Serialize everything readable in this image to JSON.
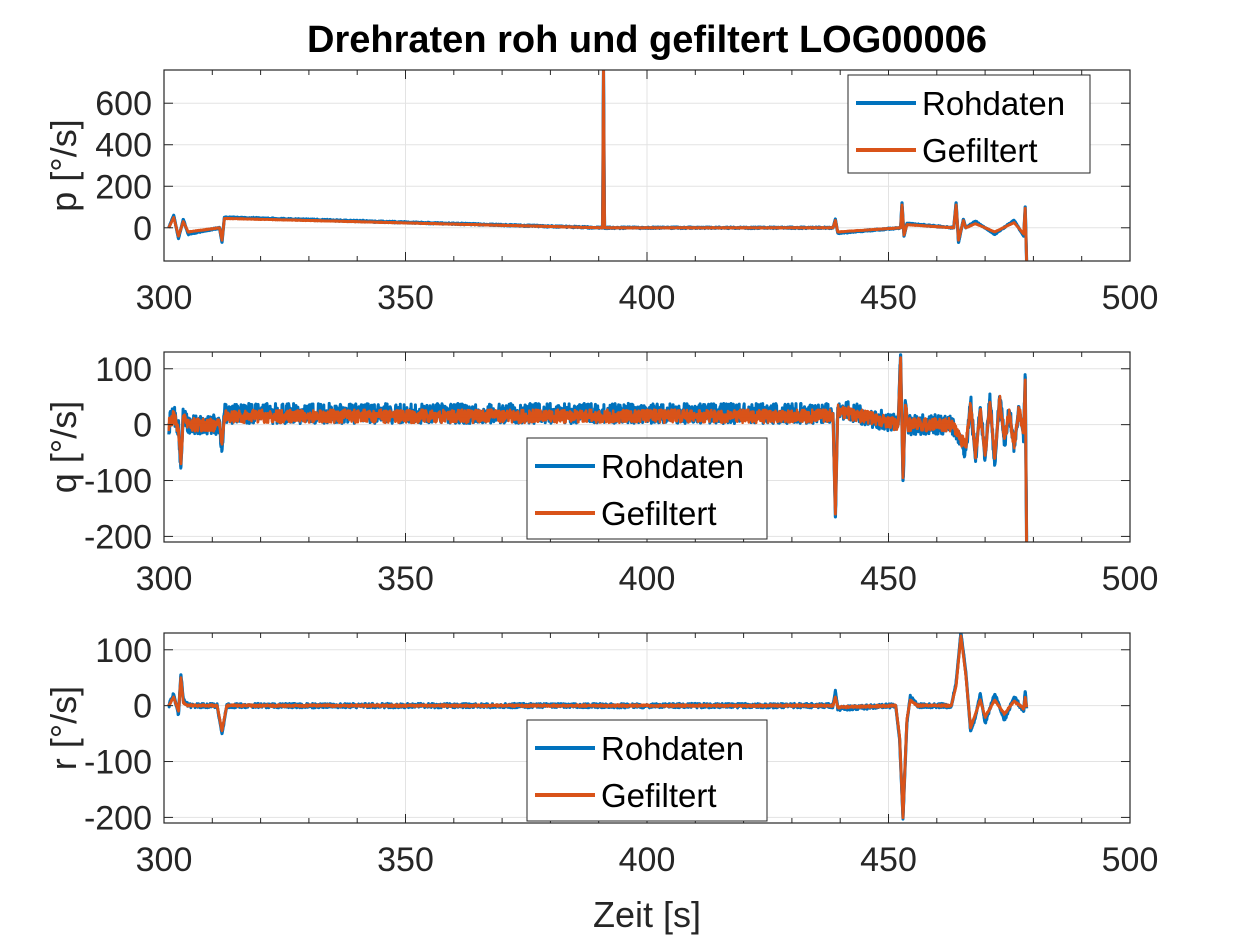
{
  "figure_title": "Drehraten roh und gefiltert LOG00006",
  "colors": {
    "raw": "#0072BD",
    "filtered": "#D95319",
    "grid": "#e3e3e3",
    "axis": "#262626"
  },
  "chart_data": [
    {
      "type": "line",
      "title": "Drehraten roh und gefiltert LOG00006",
      "xlabel": "",
      "ylabel": "p [°/s]",
      "xlim": [
        300,
        500
      ],
      "ylim": [
        -160,
        760
      ],
      "xticks": [
        300,
        350,
        400,
        450,
        500
      ],
      "yticks": [
        0,
        200,
        400,
        600
      ],
      "xtick_labels": [
        "300",
        "350",
        "400",
        "450",
        "500"
      ],
      "ytick_labels": [
        "0",
        "200",
        "400",
        "600"
      ],
      "grid": true,
      "legend": {
        "position": "top-right",
        "entries": [
          "Rohdaten",
          "Gefiltert"
        ]
      },
      "series": [
        {
          "name": "Rohdaten",
          "noise": 4,
          "x": [
            301,
            302,
            303,
            304,
            305,
            311.5,
            312,
            312.5,
            390.8,
            391,
            391.2,
            438.5,
            439,
            439.5,
            452.5,
            452.8,
            453.2,
            453.8,
            463.5,
            464,
            464.5,
            465.5,
            466,
            468,
            472,
            476,
            478,
            478.3,
            478.6
          ],
          "y": [
            0,
            60,
            -50,
            40,
            -30,
            0,
            -70,
            50,
            0,
            760,
            0,
            0,
            40,
            -25,
            0,
            120,
            -40,
            20,
            0,
            120,
            -70,
            40,
            0,
            30,
            -30,
            35,
            -40,
            100,
            -160
          ]
        },
        {
          "name": "Gefiltert",
          "noise": 2,
          "x": [
            301,
            302,
            303,
            304,
            305,
            311.5,
            312,
            312.5,
            390.8,
            391,
            391.2,
            438.5,
            439,
            439.5,
            452.5,
            452.8,
            453.2,
            453.8,
            463.5,
            464,
            464.5,
            465.5,
            466,
            468,
            472,
            476,
            478,
            478.3,
            478.6
          ],
          "y": [
            0,
            50,
            -40,
            30,
            -20,
            0,
            -60,
            45,
            0,
            760,
            0,
            0,
            35,
            -20,
            0,
            110,
            -35,
            15,
            0,
            110,
            -60,
            35,
            0,
            20,
            -20,
            25,
            -30,
            95,
            -160
          ]
        }
      ]
    },
    {
      "type": "line",
      "xlabel": "",
      "ylabel": "q [°/s]",
      "xlim": [
        300,
        500
      ],
      "ylim": [
        -210,
        130
      ],
      "xticks": [
        300,
        350,
        400,
        450,
        500
      ],
      "yticks": [
        -200,
        -100,
        0,
        100
      ],
      "xtick_labels": [
        "300",
        "350",
        "400",
        "450",
        "500"
      ],
      "ytick_labels": [
        "-200",
        "-100",
        "0",
        "100"
      ],
      "grid": true,
      "legend": {
        "position": "bottom-center",
        "entries": [
          "Rohdaten",
          "Gefiltert"
        ]
      },
      "series": [
        {
          "name": "Rohdaten",
          "noise": 18,
          "x": [
            301,
            302,
            303,
            303.5,
            304,
            305,
            311.5,
            312,
            312.5,
            438.5,
            439,
            439.5,
            452,
            452.5,
            453,
            453.5,
            454,
            463,
            465,
            466,
            467,
            468,
            469,
            470,
            471,
            472,
            473,
            474,
            475,
            476,
            477,
            478,
            478.3,
            478.6
          ],
          "y": [
            0,
            20,
            -10,
            -75,
            20,
            0,
            0,
            -40,
            20,
            20,
            -165,
            30,
            0,
            125,
            -100,
            40,
            0,
            0,
            -30,
            -45,
            40,
            -60,
            30,
            -60,
            45,
            -70,
            50,
            -30,
            25,
            -40,
            30,
            -20,
            85,
            -210
          ]
        },
        {
          "name": "Gefiltert",
          "noise": 12,
          "x": [
            301,
            302,
            303,
            303.5,
            304,
            305,
            311.5,
            312,
            312.5,
            438.5,
            439,
            439.5,
            452,
            452.5,
            453,
            453.5,
            454,
            463,
            465,
            466,
            467,
            468,
            469,
            470,
            471,
            472,
            473,
            474,
            475,
            476,
            477,
            478,
            478.3,
            478.6
          ],
          "y": [
            0,
            15,
            -8,
            -70,
            15,
            0,
            0,
            -35,
            15,
            15,
            -160,
            25,
            0,
            120,
            -95,
            35,
            0,
            0,
            -25,
            -40,
            35,
            -55,
            25,
            -55,
            40,
            -60,
            45,
            -25,
            20,
            -35,
            25,
            -15,
            80,
            -210
          ]
        }
      ]
    },
    {
      "type": "line",
      "xlabel": "Zeit [s]",
      "ylabel": "r [°/s]",
      "xlim": [
        300,
        500
      ],
      "ylim": [
        -210,
        130
      ],
      "xticks": [
        300,
        350,
        400,
        450,
        500
      ],
      "yticks": [
        -200,
        -100,
        0,
        100
      ],
      "xtick_labels": [
        "300",
        "350",
        "400",
        "450",
        "500"
      ],
      "ytick_labels": [
        "-200",
        "-100",
        "0",
        "100"
      ],
      "grid": true,
      "legend": {
        "position": "bottom-center",
        "entries": [
          "Rohdaten",
          "Gefiltert"
        ]
      },
      "series": [
        {
          "name": "Rohdaten",
          "noise": 4,
          "x": [
            301,
            302,
            303,
            303.5,
            304,
            305,
            311,
            312,
            313,
            438.5,
            439,
            439.5,
            451.5,
            452.3,
            453,
            453.8,
            454.5,
            456,
            463,
            464,
            465,
            466,
            467,
            468,
            469,
            470,
            472,
            474,
            476,
            478,
            478.3,
            478.6
          ],
          "y": [
            0,
            20,
            -15,
            55,
            10,
            0,
            0,
            -50,
            0,
            0,
            25,
            -5,
            0,
            -60,
            -200,
            -30,
            15,
            0,
            0,
            40,
            130,
            60,
            -45,
            -20,
            20,
            -30,
            20,
            -25,
            15,
            -10,
            25,
            -5
          ]
        },
        {
          "name": "Gefiltert",
          "noise": 2,
          "x": [
            301,
            302,
            303,
            303.5,
            304,
            305,
            311,
            312,
            313,
            438.5,
            439,
            439.5,
            451.5,
            452.3,
            453,
            453.8,
            454.5,
            456,
            463,
            464,
            465,
            466,
            467,
            468,
            469,
            470,
            472,
            474,
            476,
            478,
            478.3,
            478.6
          ],
          "y": [
            0,
            15,
            -10,
            50,
            5,
            0,
            0,
            -45,
            0,
            0,
            15,
            -3,
            0,
            -55,
            -200,
            -25,
            10,
            0,
            0,
            35,
            125,
            55,
            -40,
            -15,
            10,
            -20,
            10,
            -15,
            8,
            -5,
            15,
            -3
          ]
        }
      ]
    }
  ]
}
